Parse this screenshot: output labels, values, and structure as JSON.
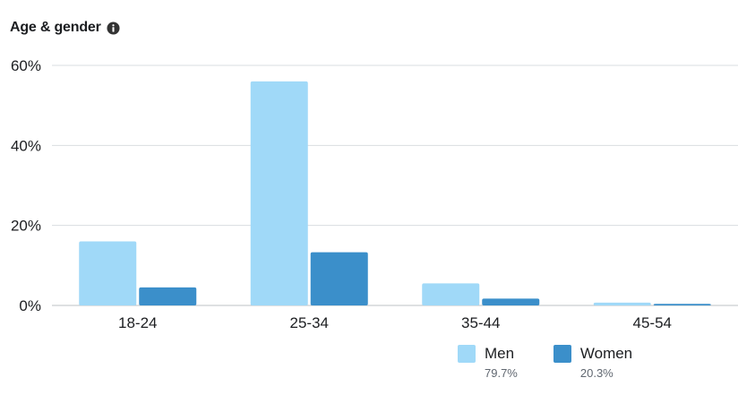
{
  "header": {
    "title": "Age & gender",
    "info_icon": "info-icon"
  },
  "chart_data": {
    "type": "bar",
    "categories": [
      "18-24",
      "25-34",
      "35-44",
      "45-54"
    ],
    "series": [
      {
        "name": "Men",
        "values": [
          16,
          56,
          5.5,
          0.7
        ],
        "color": "#a0d9f8"
      },
      {
        "name": "Women",
        "values": [
          4.5,
          13.3,
          1.7,
          0.4
        ],
        "color": "#3b8fca"
      }
    ],
    "ylim": [
      0,
      60
    ],
    "yticks": [
      0,
      20,
      40,
      60
    ],
    "ytick_labels": [
      "0%",
      "20%",
      "40%",
      "60%"
    ],
    "grid": true,
    "legend_position": "bottom-right"
  },
  "legend": [
    {
      "name": "Men",
      "share": "79.7%",
      "color": "#a0d9f8"
    },
    {
      "name": "Women",
      "share": "20.3%",
      "color": "#3b8fca"
    }
  ]
}
